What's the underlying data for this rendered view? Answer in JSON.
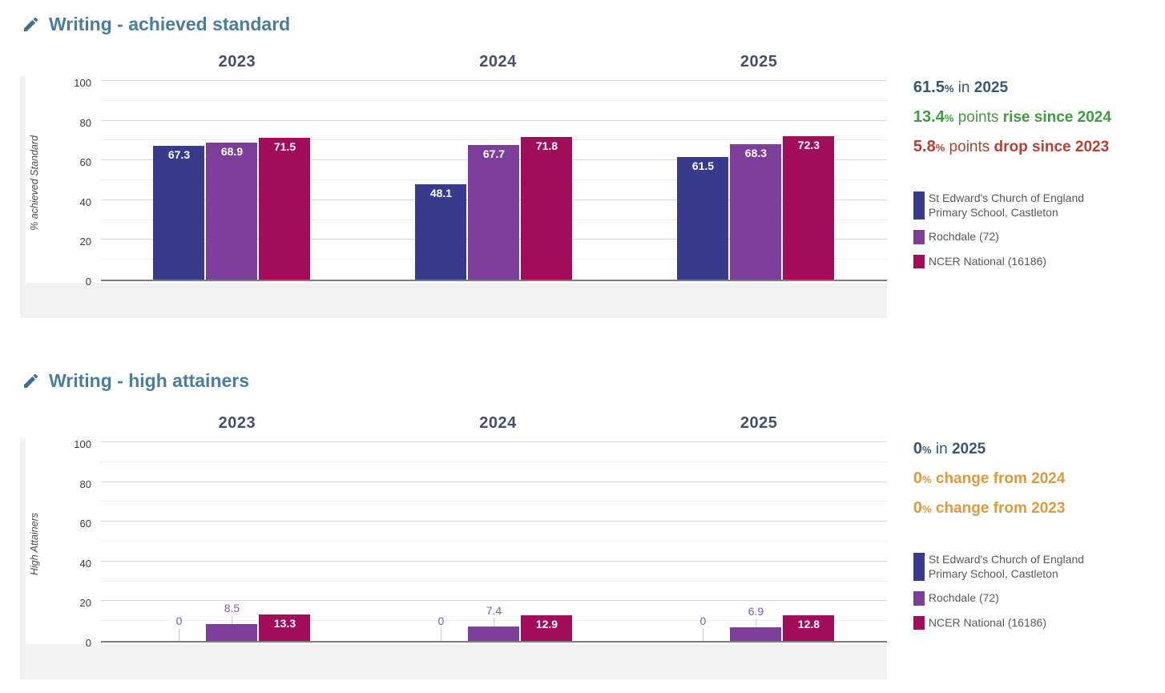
{
  "colors": {
    "title": "#4a7d9b",
    "pencil_icon": "#3f6f8d",
    "year_header": "#45506a",
    "axis_line": "#7d7d7d",
    "grid_major": "#d8d8d8",
    "grid_minor": "#efefef",
    "legend_text": "#595959",
    "stat_slate": "#3d566f",
    "stat_green": "#3f9c3f",
    "stat_red": "#b6402f",
    "stat_orange": "#e1993c",
    "card_strip": "#f2f2f3"
  },
  "chart_data": [
    {
      "type": "bar",
      "title": "Writing - achieved standard",
      "title_icon": "pencil-icon",
      "ylabel": "% achieved Standard",
      "ylim": [
        0,
        100
      ],
      "yticks": [
        0,
        20,
        40,
        60,
        80,
        100
      ],
      "grid": "horizontal, major every 20, minor every 10",
      "legend_position": "right",
      "categories": [
        "2023",
        "2024",
        "2025"
      ],
      "series": [
        {
          "name": "St Edward's Church of England Primary School, Castleton",
          "color": "#383a8c",
          "out_label_color": "#5b6db4",
          "values": [
            67.3,
            48.1,
            61.5
          ]
        },
        {
          "name": "Rochdale (72)",
          "color": "#7d3e99",
          "out_label_color": "#8a56a6",
          "values": [
            68.9,
            67.7,
            68.3
          ]
        },
        {
          "name": "NCER National (16186)",
          "color": "#a10c5b",
          "out_label_color": "#a10c5b",
          "values": [
            71.5,
            71.8,
            72.3
          ]
        }
      ],
      "stats": [
        {
          "num": "61.5",
          "pct": "%",
          "mid": " in ",
          "tail": "2025",
          "color": "#3d566f"
        },
        {
          "num": "13.4",
          "pct": "%",
          "mid": " points ",
          "tail": "rise since 2024",
          "color": "#3f9c3f"
        },
        {
          "num": "5.8",
          "pct": "%",
          "mid": " points ",
          "tail": "drop since 2023",
          "color": "#b6402f"
        }
      ]
    },
    {
      "type": "bar",
      "title": "Writing - high attainers",
      "title_icon": "pencil-icon",
      "ylabel": "High Attainers",
      "ylim": [
        0,
        100
      ],
      "yticks": [
        0,
        20,
        40,
        60,
        80,
        100
      ],
      "grid": "horizontal, major every 20, minor every 10",
      "legend_position": "right",
      "categories": [
        "2023",
        "2024",
        "2025"
      ],
      "series": [
        {
          "name": "St Edward's Church of England Primary School, Castleton",
          "color": "#383a8c",
          "out_label_color": "#5b6db4",
          "values": [
            0,
            0,
            0
          ]
        },
        {
          "name": "Rochdale (72)",
          "color": "#7d3e99",
          "out_label_color": "#8a56a6",
          "values": [
            8.5,
            7.4,
            6.9
          ]
        },
        {
          "name": "NCER National (16186)",
          "color": "#a10c5b",
          "out_label_color": "#a10c5b",
          "values": [
            13.3,
            12.9,
            12.8
          ]
        }
      ],
      "stats": [
        {
          "num": "0",
          "pct": "%",
          "mid": " in ",
          "tail": "2025",
          "color": "#3d566f"
        },
        {
          "num": "0",
          "pct": "%",
          "mid": " ",
          "tail": "change from 2024",
          "color": "#e1993c"
        },
        {
          "num": "0",
          "pct": "%",
          "mid": " ",
          "tail": "change from 2023",
          "color": "#e1993c"
        }
      ]
    }
  ]
}
